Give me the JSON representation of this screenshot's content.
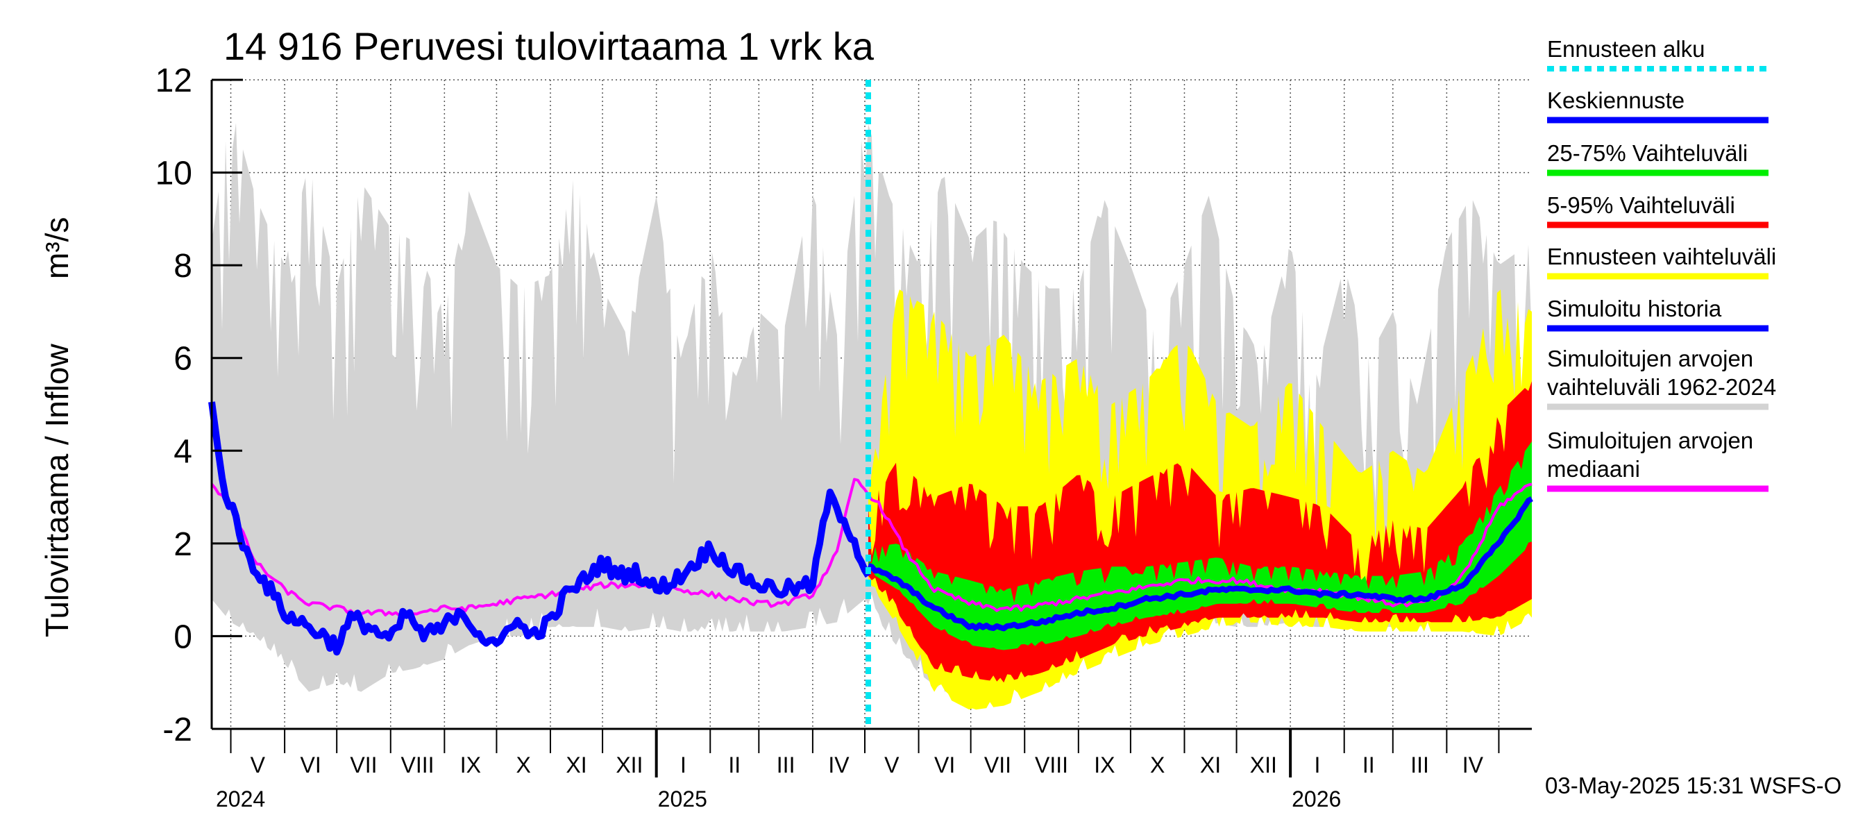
{
  "title": "14 916 Peruvesi tulovirtaama 1 vrk ka",
  "ylabel": "Tulovirtaama / Inflow",
  "yunit": "m³/s",
  "footer": "03-May-2025 15:31 WSFS-O",
  "legend": [
    {
      "label": "Ennusteen alku",
      "color": "#00e5f0",
      "style": "dashed"
    },
    {
      "label": "Keskiennuste",
      "color": "#0000ff",
      "style": "solid"
    },
    {
      "label": "25-75% Vaihteluväli",
      "color": "#00ee00",
      "style": "solid"
    },
    {
      "label": "5-95% Vaihteluväli",
      "color": "#ff0000",
      "style": "solid"
    },
    {
      "label": "Ennusteen vaihteluväli",
      "color": "#ffff00",
      "style": "solid"
    },
    {
      "label": "Simuloitu historia",
      "color": "#0000ff",
      "style": "solid"
    },
    {
      "label": "Simuloitujen arvojen vaihteluväli 1962-2024",
      "lines": [
        "Simuloitujen arvojen",
        "vaihteluväli 1962-2024"
      ],
      "color": "#d3d3d3",
      "style": "solid"
    },
    {
      "label": "Simuloitujen arvojen mediaani",
      "lines": [
        "Simuloitujen arvojen",
        "mediaani"
      ],
      "color": "#ff00ff",
      "style": "solid"
    }
  ],
  "chart_data": {
    "type": "line",
    "title": "14 916 Peruvesi tulovirtaama 1 vrk ka",
    "ylabel": "Tulovirtaama / Inflow m³/s",
    "ylim": [
      -2,
      12
    ],
    "yticks": [
      -2,
      0,
      2,
      4,
      6,
      8,
      10,
      12
    ],
    "xlim": [
      "2024-04-20",
      "2026-05-20"
    ],
    "grid": true,
    "legend_position": "right",
    "forecast_start": "2025-05-03",
    "month_labels": [
      "V",
      "VI",
      "VII",
      "VIII",
      "IX",
      "X",
      "XI",
      "XII",
      "I",
      "II",
      "III",
      "IV",
      "V",
      "VI",
      "VII",
      "VIII",
      "IX",
      "X",
      "XI",
      "XII",
      "I",
      "II",
      "III",
      "IV"
    ],
    "year_labels": [
      "2024",
      "2025",
      "2026"
    ],
    "simulated_history": {
      "name": "Simuloitu historia",
      "x": [
        "2024-04-20",
        "2024-04-25",
        "2024-05-01",
        "2024-05-10",
        "2024-05-20",
        "2024-06-01",
        "2024-06-10",
        "2024-06-20",
        "2024-07-01",
        "2024-07-10",
        "2024-07-20",
        "2024-08-01",
        "2024-08-10",
        "2024-08-20",
        "2024-09-01",
        "2024-09-10",
        "2024-09-20",
        "2024-10-01",
        "2024-10-10",
        "2024-10-20",
        "2024-11-01",
        "2024-11-10",
        "2024-11-20",
        "2024-12-01",
        "2024-12-10",
        "2024-12-20",
        "2025-01-01",
        "2025-01-15",
        "2025-02-01",
        "2025-02-15",
        "2025-03-01",
        "2025-03-15",
        "2025-04-01",
        "2025-04-10",
        "2025-04-20",
        "2025-05-03"
      ],
      "y": [
        5.2,
        3.5,
        2.8,
        1.8,
        1.2,
        0.5,
        0.3,
        0.1,
        -0.2,
        0.4,
        0.2,
        -0.1,
        0.5,
        0.0,
        0.2,
        0.6,
        0.1,
        -0.3,
        0.4,
        0.0,
        0.3,
        0.9,
        1.2,
        1.6,
        1.3,
        1.4,
        1.0,
        1.3,
        1.9,
        1.4,
        1.1,
        1.0,
        1.1,
        3.0,
        2.5,
        1.3
      ]
    },
    "historical_range": {
      "name": "Simuloitujen arvojen vaihteluväli 1962-2024",
      "x": [
        "2024-04-20",
        "2024-05-01",
        "2024-05-15",
        "2024-06-01",
        "2024-06-15",
        "2024-07-01",
        "2024-07-15",
        "2024-08-01",
        "2024-08-15",
        "2024-09-01",
        "2024-09-15",
        "2024-10-01",
        "2024-10-15",
        "2024-11-01",
        "2024-11-15",
        "2024-12-01",
        "2024-12-15",
        "2025-01-01",
        "2025-01-15",
        "2025-02-01",
        "2025-02-15",
        "2025-03-01",
        "2025-03-15",
        "2025-04-01",
        "2025-04-15",
        "2025-05-01",
        "2025-05-15",
        "2025-06-01",
        "2025-06-15",
        "2025-07-01",
        "2025-07-15",
        "2025-08-01",
        "2025-08-15",
        "2025-09-01",
        "2025-09-15",
        "2025-10-01",
        "2025-10-15",
        "2025-11-01",
        "2025-11-15",
        "2025-12-01",
        "2025-12-15",
        "2026-01-01",
        "2026-01-15",
        "2026-02-01",
        "2026-02-15",
        "2026-03-01",
        "2026-03-15",
        "2026-04-01",
        "2026-04-15",
        "2026-05-01",
        "2026-05-20"
      ],
      "low": [
        0.8,
        0.3,
        0.0,
        -0.6,
        -1.2,
        -1.0,
        -1.2,
        -0.8,
        -0.7,
        -0.5,
        -0.2,
        0.0,
        0.0,
        0.2,
        0.2,
        0.2,
        0.1,
        0.2,
        0.1,
        0.1,
        0.1,
        0.1,
        0.1,
        0.2,
        0.3,
        0.8,
        0.0,
        -0.8,
        -1.2,
        -1.3,
        -1.0,
        -0.8,
        -0.5,
        -0.3,
        -0.1,
        0.0,
        0.1,
        0.2,
        0.3,
        0.2,
        0.2,
        0.3,
        0.2,
        0.2,
        0.2,
        0.2,
        0.2,
        0.3,
        0.3,
        0.4,
        0.5
      ],
      "high": [
        8.5,
        11.5,
        9.5,
        8.0,
        10.2,
        7.5,
        9.8,
        8.8,
        8.5,
        7.0,
        9.6,
        8.0,
        7.5,
        7.8,
        10.0,
        7.5,
        6.5,
        9.5,
        6.0,
        8.5,
        5.5,
        7.0,
        6.5,
        9.8,
        6.5,
        11.3,
        9.5,
        8.0,
        10.0,
        8.5,
        9.0,
        8.0,
        7.5,
        7.5,
        9.5,
        8.0,
        6.5,
        8.0,
        9.5,
        7.0,
        6.0,
        8.5,
        5.5,
        8.0,
        6.0,
        7.0,
        5.0,
        8.5,
        9.5,
        8.0,
        8.5
      ]
    },
    "forecast_range": {
      "name": "Ennusteen vaihteluväli",
      "x": [
        "2025-05-03",
        "2025-05-20",
        "2025-06-10",
        "2025-07-01",
        "2025-07-20",
        "2025-08-10",
        "2025-09-01",
        "2025-09-20",
        "2025-10-10",
        "2025-11-01",
        "2025-11-20",
        "2025-12-10",
        "2026-01-01",
        "2026-01-20",
        "2026-02-10",
        "2026-03-01",
        "2026-03-20",
        "2026-04-10",
        "2026-05-01",
        "2026-05-20"
      ],
      "low": [
        1.2,
        0.2,
        -1.2,
        -1.6,
        -1.5,
        -1.2,
        -0.8,
        -0.5,
        -0.2,
        0.0,
        0.2,
        0.3,
        0.2,
        0.2,
        0.1,
        0.1,
        0.1,
        0.1,
        0.0,
        0.4
      ],
      "high": [
        3.0,
        7.5,
        7.0,
        6.0,
        6.5,
        5.5,
        6.0,
        5.0,
        5.5,
        6.5,
        5.0,
        4.5,
        5.5,
        4.5,
        3.5,
        4.0,
        3.5,
        5.5,
        7.5,
        7.0
      ]
    },
    "p5_95": {
      "name": "5-95% Vaihteluväli",
      "x": [
        "2025-05-03",
        "2025-05-20",
        "2025-06-10",
        "2025-07-01",
        "2025-07-20",
        "2025-08-10",
        "2025-09-01",
        "2025-09-20",
        "2025-10-10",
        "2025-11-01",
        "2025-11-20",
        "2025-12-10",
        "2026-01-01",
        "2026-01-20",
        "2026-02-10",
        "2026-03-01",
        "2026-03-20",
        "2026-04-10",
        "2026-05-01",
        "2026-05-20"
      ],
      "low": [
        1.3,
        0.5,
        -0.7,
        -0.9,
        -1.0,
        -0.8,
        -0.5,
        -0.2,
        0.0,
        0.2,
        0.4,
        0.4,
        0.4,
        0.4,
        0.3,
        0.3,
        0.3,
        0.3,
        0.4,
        0.8
      ],
      "high": [
        2.8,
        3.8,
        3.0,
        3.3,
        2.8,
        2.8,
        3.5,
        3.0,
        3.4,
        3.8,
        3.0,
        3.2,
        3.0,
        2.8,
        2.0,
        2.5,
        2.3,
        3.2,
        4.8,
        5.5
      ]
    },
    "p25_75": {
      "name": "25-75% Vaihteluväli",
      "x": [
        "2025-05-03",
        "2025-05-20",
        "2025-06-10",
        "2025-07-01",
        "2025-07-20",
        "2025-08-10",
        "2025-09-01",
        "2025-09-20",
        "2025-10-10",
        "2025-11-01",
        "2025-11-20",
        "2025-12-10",
        "2026-01-01",
        "2026-01-20",
        "2026-02-10",
        "2026-03-01",
        "2026-03-20",
        "2026-04-10",
        "2026-05-01",
        "2026-05-20"
      ],
      "low": [
        1.4,
        1.0,
        0.2,
        -0.2,
        -0.3,
        -0.2,
        0.0,
        0.2,
        0.4,
        0.5,
        0.7,
        0.7,
        0.7,
        0.6,
        0.5,
        0.5,
        0.5,
        0.7,
        1.3,
        2.0
      ],
      "high": [
        1.9,
        2.0,
        1.4,
        1.2,
        1.0,
        1.2,
        1.4,
        1.5,
        1.5,
        1.6,
        1.7,
        1.5,
        1.5,
        1.4,
        1.3,
        1.3,
        1.4,
        2.0,
        3.2,
        4.2
      ]
    },
    "median_forecast": {
      "name": "Keskiennuste",
      "x": [
        "2025-05-03",
        "2025-05-20",
        "2025-06-10",
        "2025-07-01",
        "2025-07-20",
        "2025-08-10",
        "2025-09-01",
        "2025-09-20",
        "2025-10-10",
        "2025-11-01",
        "2025-11-20",
        "2025-12-10",
        "2026-01-01",
        "2026-01-20",
        "2026-02-10",
        "2026-03-01",
        "2026-03-20",
        "2026-04-10",
        "2026-05-01",
        "2026-05-20"
      ],
      "y": [
        1.5,
        1.2,
        0.6,
        0.2,
        0.2,
        0.3,
        0.5,
        0.6,
        0.8,
        0.9,
        1.0,
        1.0,
        1.0,
        0.9,
        0.9,
        0.8,
        0.8,
        1.1,
        2.0,
        3.0
      ]
    },
    "historical_median": {
      "name": "Simuloitujen arvojen mediaani",
      "x": [
        "2024-04-20",
        "2024-05-01",
        "2024-05-15",
        "2024-06-01",
        "2024-06-15",
        "2024-07-01",
        "2024-07-15",
        "2024-08-01",
        "2024-08-15",
        "2024-09-01",
        "2024-09-15",
        "2024-10-01",
        "2024-10-15",
        "2024-11-01",
        "2024-11-15",
        "2024-12-01",
        "2024-12-15",
        "2025-01-01",
        "2025-01-15",
        "2025-02-01",
        "2025-02-15",
        "2025-03-01",
        "2025-03-15",
        "2025-04-01",
        "2025-04-15",
        "2025-04-25",
        "2025-05-10",
        "2025-05-25",
        "2025-06-10",
        "2025-07-01",
        "2025-07-15",
        "2025-08-01",
        "2025-08-15",
        "2025-09-01",
        "2025-09-15",
        "2025-10-01",
        "2025-10-15",
        "2025-11-01",
        "2025-11-15",
        "2025-12-01",
        "2025-12-15",
        "2026-01-01",
        "2026-01-15",
        "2026-02-01",
        "2026-02-15",
        "2026-03-01",
        "2026-03-15",
        "2026-04-01",
        "2026-04-15",
        "2026-05-01",
        "2026-05-20"
      ],
      "y": [
        3.3,
        2.8,
        1.6,
        1.0,
        0.7,
        0.6,
        0.5,
        0.5,
        0.5,
        0.6,
        0.6,
        0.7,
        0.8,
        0.9,
        1.0,
        1.1,
        1.1,
        1.1,
        1.0,
        0.9,
        0.8,
        0.7,
        0.7,
        0.9,
        1.8,
        3.4,
        2.8,
        1.8,
        1.0,
        0.7,
        0.6,
        0.6,
        0.7,
        0.8,
        0.9,
        1.0,
        1.1,
        1.2,
        1.2,
        1.2,
        1.1,
        1.0,
        1.0,
        0.9,
        0.8,
        0.7,
        0.7,
        0.9,
        1.6,
        2.8,
        3.3
      ]
    }
  }
}
